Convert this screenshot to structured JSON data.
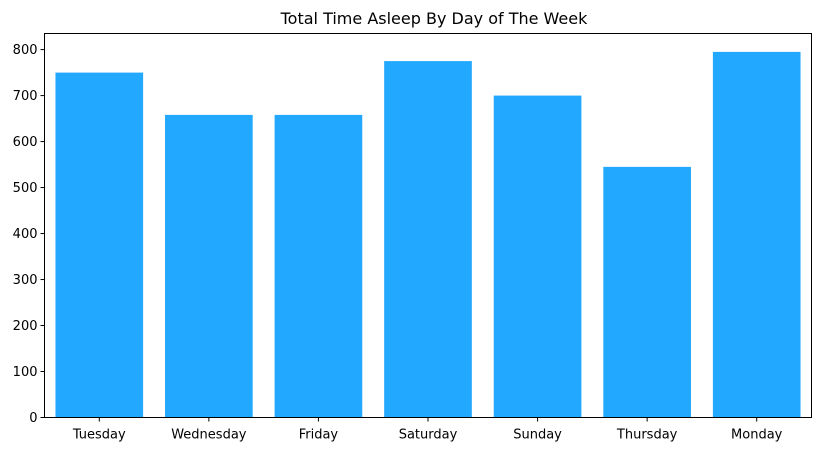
{
  "chart_data": {
    "type": "bar",
    "title": "Total Time Asleep By Day of The Week",
    "xlabel": "",
    "ylabel": "",
    "categories": [
      "Tuesday",
      "Wednesday",
      "Friday",
      "Saturday",
      "Sunday",
      "Thursday",
      "Monday"
    ],
    "values": [
      750,
      658,
      658,
      775,
      700,
      545,
      795
    ],
    "ylim": [
      0,
      835
    ],
    "yticks": [
      0,
      100,
      200,
      300,
      400,
      500,
      600,
      700,
      800
    ],
    "grid": false,
    "legend": "none",
    "bar_color": "#22a8ff"
  }
}
